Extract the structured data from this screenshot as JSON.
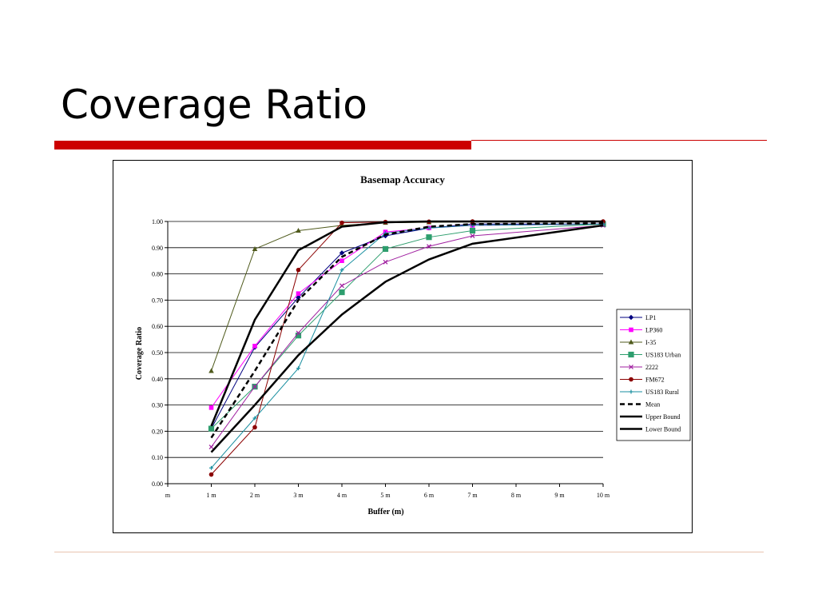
{
  "slide": {
    "title": "Coverage Ratio"
  },
  "colors": {
    "accent_bar": "#cc0000",
    "bottom_rule": "#e8c4b0"
  },
  "chart_data": {
    "type": "line",
    "title": "Basemap Accuracy",
    "xlabel": "Buffer (m)",
    "ylabel": "Coverage Ratio",
    "categories": [
      "m",
      "1 m",
      "2 m",
      "3 m",
      "4 m",
      "5 m",
      "6 m",
      "7 m",
      "8 m",
      "9 m",
      "10 m"
    ],
    "yticks": [
      "0.00",
      "0.10",
      "0.20",
      "0.30",
      "0.40",
      "0.50",
      "0.60",
      "0.70",
      "0.80",
      "0.90",
      "1.00"
    ],
    "ylim": [
      0,
      1
    ],
    "grid": true,
    "legend_position": "right",
    "series": [
      {
        "name": "LP1",
        "color": "#000080",
        "marker": "diamond",
        "dash": false,
        "width": 1,
        "points": [
          [
            1,
            0.21
          ],
          [
            2,
            0.52
          ],
          [
            3,
            0.71
          ],
          [
            4,
            0.88
          ],
          [
            5,
            0.945
          ],
          [
            6,
            0.975
          ],
          [
            7,
            0.99
          ],
          [
            10,
            0.99
          ]
        ]
      },
      {
        "name": "LP360",
        "color": "#ff00ff",
        "marker": "square",
        "dash": false,
        "width": 1,
        "points": [
          [
            1,
            0.29
          ],
          [
            2,
            0.525
          ],
          [
            3,
            0.725
          ],
          [
            4,
            0.85
          ],
          [
            5,
            0.96
          ],
          [
            6,
            0.975
          ],
          [
            7,
            0.985
          ],
          [
            10,
            0.99
          ]
        ]
      },
      {
        "name": "I-35",
        "color": "#4f5a1c",
        "marker": "triangle",
        "dash": false,
        "width": 1,
        "points": [
          [
            1,
            0.43
          ],
          [
            2,
            0.895
          ],
          [
            3,
            0.965
          ],
          [
            4,
            0.985
          ],
          [
            5,
            0.995
          ],
          [
            6,
            0.997
          ],
          [
            7,
            0.998
          ],
          [
            10,
            0.999
          ]
        ]
      },
      {
        "name": "US183 Urban",
        "color": "#2e9e6e",
        "marker": "square-big",
        "dash": false,
        "width": 1,
        "points": [
          [
            1,
            0.21
          ],
          [
            2,
            0.37
          ],
          [
            3,
            0.565
          ],
          [
            4,
            0.73
          ],
          [
            5,
            0.895
          ],
          [
            6,
            0.94
          ],
          [
            7,
            0.965
          ],
          [
            10,
            0.99
          ]
        ]
      },
      {
        "name": "2222",
        "color": "#a020a0",
        "marker": "x",
        "dash": false,
        "width": 1,
        "points": [
          [
            1,
            0.14
          ],
          [
            2,
            0.37
          ],
          [
            3,
            0.575
          ],
          [
            4,
            0.755
          ],
          [
            5,
            0.845
          ],
          [
            6,
            0.905
          ],
          [
            7,
            0.945
          ],
          [
            10,
            0.985
          ]
        ]
      },
      {
        "name": "FM672",
        "color": "#8b0000",
        "marker": "circle",
        "dash": false,
        "width": 1,
        "points": [
          [
            1,
            0.035
          ],
          [
            2,
            0.215
          ],
          [
            3,
            0.815
          ],
          [
            4,
            0.995
          ],
          [
            5,
            0.998
          ],
          [
            6,
            0.999
          ],
          [
            7,
            1.0
          ],
          [
            10,
            1.0
          ]
        ]
      },
      {
        "name": "US183 Rural",
        "color": "#1a8fa0",
        "marker": "plus",
        "dash": false,
        "width": 1,
        "points": [
          [
            1,
            0.06
          ],
          [
            2,
            0.25
          ],
          [
            3,
            0.44
          ],
          [
            4,
            0.815
          ],
          [
            5,
            0.955
          ],
          [
            6,
            0.975
          ],
          [
            7,
            0.985
          ],
          [
            10,
            0.99
          ]
        ]
      },
      {
        "name": "Mean",
        "color": "#000000",
        "marker": "none",
        "dash": true,
        "width": 2.5,
        "points": [
          [
            1,
            0.175
          ],
          [
            2,
            0.43
          ],
          [
            3,
            0.7
          ],
          [
            4,
            0.865
          ],
          [
            5,
            0.95
          ],
          [
            6,
            0.98
          ],
          [
            7,
            0.99
          ],
          [
            10,
            0.993
          ]
        ]
      },
      {
        "name": "Upper Bound",
        "color": "#000000",
        "marker": "none",
        "dash": false,
        "width": 2.5,
        "points": [
          [
            1,
            0.22
          ],
          [
            2,
            0.625
          ],
          [
            3,
            0.89
          ],
          [
            4,
            0.98
          ],
          [
            5,
            0.997
          ],
          [
            6,
            1.0
          ],
          [
            7,
            1.0
          ],
          [
            10,
            1.0
          ]
        ]
      },
      {
        "name": "Lower Bound",
        "color": "#000000",
        "marker": "none",
        "dash": false,
        "width": 2.5,
        "points": [
          [
            1,
            0.12
          ],
          [
            2,
            0.3
          ],
          [
            3,
            0.49
          ],
          [
            4,
            0.645
          ],
          [
            5,
            0.77
          ],
          [
            6,
            0.855
          ],
          [
            7,
            0.915
          ],
          [
            10,
            0.985
          ]
        ]
      }
    ]
  }
}
